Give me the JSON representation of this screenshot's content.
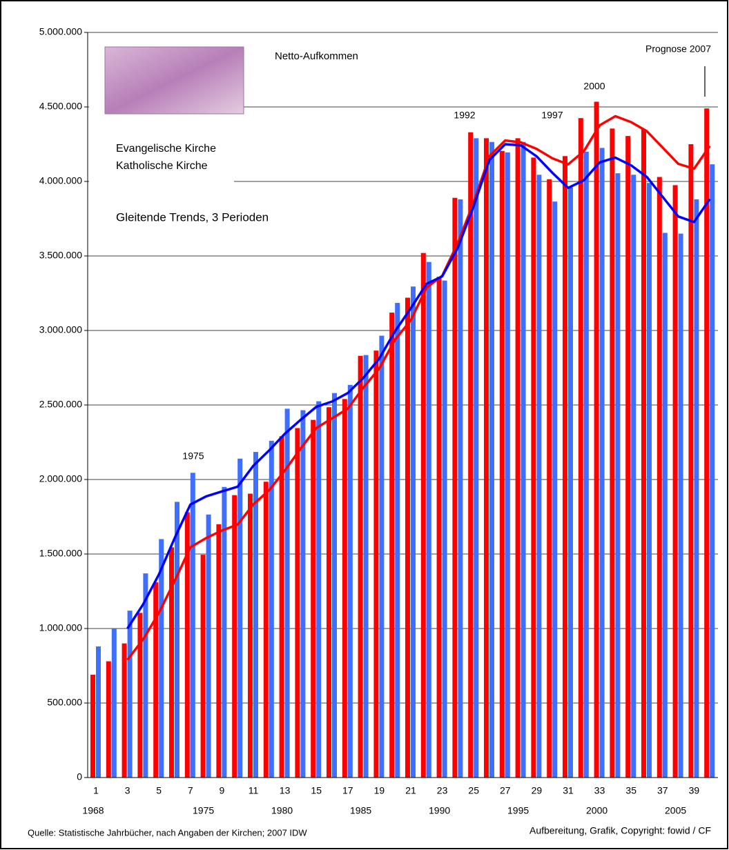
{
  "chart_data": {
    "type": "bar",
    "title": "Netto-Aufkommen",
    "subtitle": "Gleitende Trends, 3 Perioden",
    "annotations": [
      "1975",
      "1992",
      "1997",
      "2000",
      "Prognose 2007"
    ],
    "source": "Quelle: Statistische Jahrbücher, nach Angaben der Kirchen;  2007 IDW",
    "credit": "Aufbereitung, Grafik, Copyright: fowid / CF",
    "categories": [
      "1",
      null,
      "3",
      null,
      "5",
      null,
      "7",
      null,
      "9",
      null,
      "11",
      null,
      "13",
      null,
      "15",
      null,
      "17",
      null,
      "19",
      null,
      "21",
      null,
      "23",
      null,
      "25",
      null,
      "27",
      null,
      "29",
      null,
      "31",
      null,
      "33",
      null,
      "35",
      null,
      "37",
      null,
      "39",
      null
    ],
    "years": [
      "1968",
      null,
      null,
      null,
      null,
      null,
      null,
      "1975",
      null,
      null,
      null,
      null,
      "1980",
      null,
      null,
      null,
      null,
      "1985",
      null,
      null,
      null,
      null,
      "1990",
      null,
      null,
      null,
      null,
      "1995",
      null,
      null,
      null,
      null,
      "2000",
      null,
      null,
      null,
      null,
      "2005",
      null,
      null
    ],
    "ylim": [
      0,
      5000000
    ],
    "yticks": [
      0,
      {
        "value": 500000,
        "label": "500.000"
      },
      {
        "value": 1000000,
        "label": "1.000.000"
      },
      {
        "value": 1500000,
        "label": "1.500.000"
      },
      {
        "value": 2000000,
        "label": "2.000.000"
      },
      {
        "value": 2500000,
        "label": "2.500.000"
      },
      {
        "value": 3000000,
        "label": "3.000.000"
      },
      {
        "value": 3500000,
        "label": "3.500.000"
      },
      {
        "value": 4000000,
        "label": "4.000.000"
      },
      {
        "value": 4500000,
        "label": "4.500.000"
      },
      {
        "value": 5000000,
        "label": "5.000.000"
      }
    ],
    "grid": true,
    "series": [
      {
        "name": "Katholische Kirche",
        "type": "bar",
        "color": "#ff0000",
        "values": [
          690000,
          780000,
          900000,
          1105000,
          1310000,
          1545000,
          1780000,
          1495000,
          1700000,
          1895000,
          1905000,
          1985000,
          2290000,
          2345000,
          2400000,
          2485000,
          2540000,
          2830000,
          2865000,
          3120000,
          3220000,
          3520000,
          3360000,
          3890000,
          4330000,
          4290000,
          4205000,
          4290000,
          4160000,
          4015000,
          4170000,
          4425000,
          4535000,
          4355000,
          4305000,
          4350000,
          4030000,
          3975000,
          4250000,
          4490000
        ]
      },
      {
        "name": "Evangelische Kirche",
        "type": "bar",
        "color": "#3f6fff",
        "values": [
          880000,
          1000000,
          1120000,
          1370000,
          1600000,
          1850000,
          2045000,
          1765000,
          1950000,
          2140000,
          2185000,
          2260000,
          2475000,
          2465000,
          2525000,
          2580000,
          2635000,
          2835000,
          2965000,
          3185000,
          3295000,
          3460000,
          3335000,
          3880000,
          4290000,
          4265000,
          4195000,
          4265000,
          4045000,
          3865000,
          3960000,
          4200000,
          4225000,
          4055000,
          4045000,
          3990000,
          3655000,
          3650000,
          3880000,
          4115000
        ]
      },
      {
        "type": "line",
        "color": "#ff0000",
        "values": [
          null,
          null,
          790000,
          928000,
          1105000,
          1320000,
          1545000,
          1607000,
          1658000,
          1697000,
          1833000,
          1928000,
          2060000,
          2207000,
          2345000,
          2410000,
          2475000,
          2618000,
          2745000,
          2938000,
          3068000,
          3287000,
          3367000,
          3590000,
          3860000,
          4170000,
          4275000,
          4262000,
          4218000,
          4155000,
          4115000,
          4203000,
          4377000,
          4438000,
          4398000,
          4337000,
          4228000,
          4118000,
          4085000,
          4238000
        ]
      },
      {
        "type": "line",
        "color": "#0000ff",
        "values": [
          null,
          null,
          1000000,
          1163000,
          1363000,
          1607000,
          1832000,
          1887000,
          1920000,
          1952000,
          2092000,
          2195000,
          2307000,
          2400000,
          2488000,
          2523000,
          2580000,
          2683000,
          2812000,
          2995000,
          3148000,
          3313000,
          3363000,
          3558000,
          3835000,
          4145000,
          4250000,
          4242000,
          4168000,
          4058000,
          3957000,
          4008000,
          4128000,
          4160000,
          4108000,
          4030000,
          3897000,
          3765000,
          3728000,
          3882000
        ]
      }
    ]
  }
}
